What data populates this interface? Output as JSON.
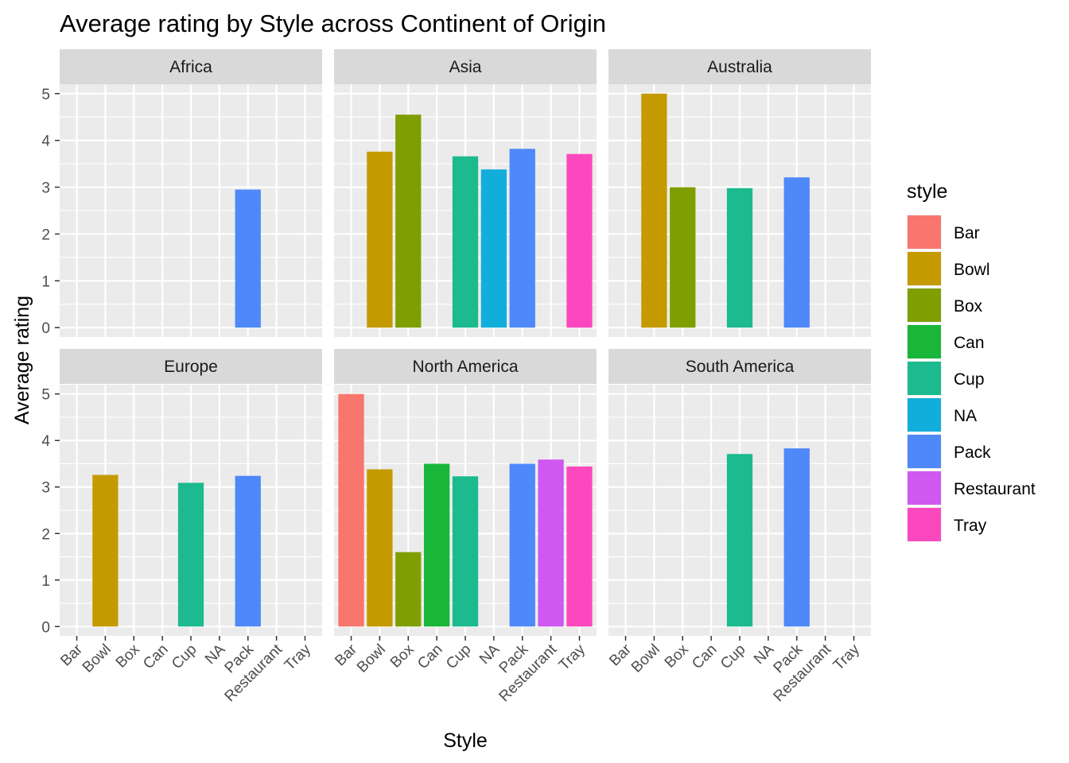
{
  "chart_data": {
    "type": "bar",
    "title": "Average rating by Style across Continent of Origin",
    "xlabel": "Style",
    "ylabel": "Average rating",
    "ylim": [
      0,
      5
    ],
    "yticks": [
      0,
      1,
      2,
      3,
      4,
      5
    ],
    "grid": true,
    "categories": [
      "Bar",
      "Bowl",
      "Box",
      "Can",
      "Cup",
      "NA",
      "Pack",
      "Restaurant",
      "Tray"
    ],
    "legend": {
      "title": "style",
      "position": "right",
      "entries": [
        {
          "label": "Bar",
          "color": "#F8766D"
        },
        {
          "label": "Bowl",
          "color": "#C49A00"
        },
        {
          "label": "Box",
          "color": "#7F9E00"
        },
        {
          "label": "Can",
          "color": "#19B63A"
        },
        {
          "label": "Cup",
          "color": "#1CBA8E"
        },
        {
          "label": "NA",
          "color": "#12AEDB"
        },
        {
          "label": "Pack",
          "color": "#4F88F8"
        },
        {
          "label": "Restaurant",
          "color": "#CE58F0"
        },
        {
          "label": "Tray",
          "color": "#FC48BE"
        }
      ]
    },
    "panels": [
      {
        "name": "Africa",
        "values": [
          null,
          null,
          null,
          null,
          null,
          null,
          2.95,
          null,
          null
        ]
      },
      {
        "name": "Asia",
        "values": [
          null,
          3.76,
          4.55,
          null,
          3.66,
          3.38,
          3.82,
          null,
          3.71
        ]
      },
      {
        "name": "Australia",
        "values": [
          null,
          5.0,
          3.0,
          null,
          2.98,
          null,
          3.21,
          null,
          null
        ]
      },
      {
        "name": "Europe",
        "values": [
          null,
          3.26,
          null,
          null,
          3.09,
          null,
          3.24,
          null,
          null
        ]
      },
      {
        "name": "North America",
        "values": [
          5.0,
          3.38,
          1.6,
          3.5,
          3.23,
          null,
          3.5,
          3.59,
          3.44
        ]
      },
      {
        "name": "South America",
        "values": [
          null,
          null,
          null,
          null,
          3.71,
          null,
          3.83,
          null,
          null
        ]
      }
    ]
  }
}
